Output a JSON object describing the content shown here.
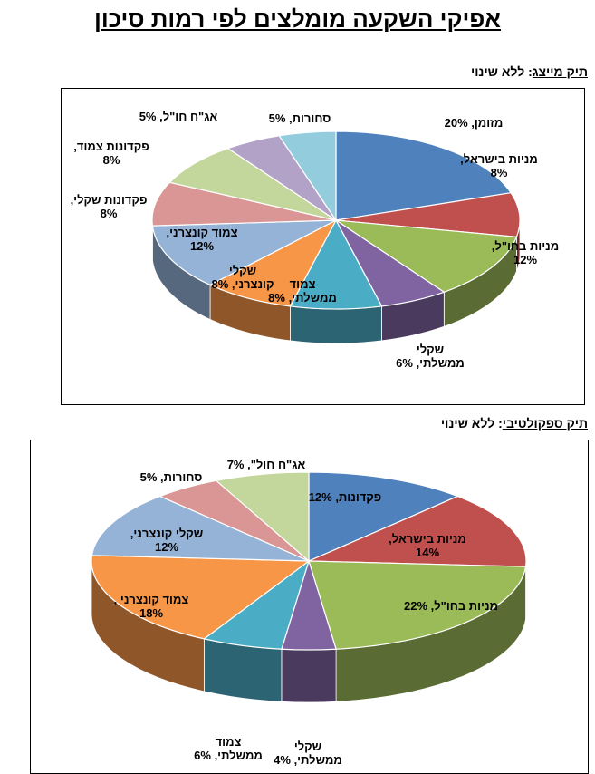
{
  "header": {
    "title": "אפיקי השקעה מומלצים לפי רמות סיכון"
  },
  "sections": [
    {
      "name": "תיק מייצג",
      "sep": ":",
      "note": "ללא שינוי"
    },
    {
      "name": "תיק ספקולטיבי",
      "sep": ":",
      "note": "ללא שינוי"
    }
  ],
  "chart_data": [
    {
      "type": "pie",
      "style": "3d",
      "title": "",
      "slices": [
        {
          "label": [
            "מזומן, 20%"
          ],
          "value": 20,
          "color": "#4F81BD"
        },
        {
          "label": [
            "מניות בישראל,",
            "8%"
          ],
          "value": 8,
          "color": "#C0504D"
        },
        {
          "label": [
            "מניות בחו\"ל,",
            "12%"
          ],
          "value": 12,
          "color": "#9BBB59"
        },
        {
          "label": [
            "שקלי",
            "ממשלתי, 6%"
          ],
          "value": 6,
          "color": "#8064A2"
        },
        {
          "label": [
            "צמוד",
            "ממשלתי, 8%"
          ],
          "value": 8,
          "color": "#4BACC6"
        },
        {
          "label": [
            "שקלי",
            "קונצרני, 8%"
          ],
          "value": 8,
          "color": "#F79646"
        },
        {
          "label": [
            "צמוד קונצרני,",
            "12%"
          ],
          "value": 12,
          "color": "#95B3D7"
        },
        {
          "label": [
            "פקדונות שקלי,",
            "8%"
          ],
          "value": 8,
          "color": "#D99694"
        },
        {
          "label": [
            "פקדונות צמוד,",
            "8%"
          ],
          "value": 8,
          "color": "#C3D69B"
        },
        {
          "label": [
            "אג\"ח חו\"ל, 5%"
          ],
          "value": 5,
          "color": "#B3A2C7"
        },
        {
          "label": [
            "סחורות, 5%"
          ],
          "value": 5,
          "color": "#93CDDD"
        }
      ]
    },
    {
      "type": "pie",
      "style": "3d",
      "title": "",
      "slices": [
        {
          "label": [
            "פקדונות, 12%"
          ],
          "value": 12,
          "color": "#4F81BD"
        },
        {
          "label": [
            "מניות בישראל,",
            "14%"
          ],
          "value": 14,
          "color": "#C0504D"
        },
        {
          "label": [
            "מניות בחו\"ל, 22%"
          ],
          "value": 22,
          "color": "#9BBB59"
        },
        {
          "label": [
            "שקלי",
            "ממשלתי, 4%"
          ],
          "value": 4,
          "color": "#8064A2"
        },
        {
          "label": [
            "צמוד",
            "ממשלתי, 6%"
          ],
          "value": 6,
          "color": "#4BACC6"
        },
        {
          "label": [
            "צמוד קונצרני ,",
            "18%"
          ],
          "value": 18,
          "color": "#F79646"
        },
        {
          "label": [
            "שקלי קונצרני,",
            "12%"
          ],
          "value": 12,
          "color": "#95B3D7"
        },
        {
          "label": [
            "סחורות, 5%"
          ],
          "value": 5,
          "color": "#D99694"
        },
        {
          "label": [
            "אג\"ח חול\", 7%"
          ],
          "value": 7,
          "color": "#C3D69B"
        }
      ]
    }
  ]
}
